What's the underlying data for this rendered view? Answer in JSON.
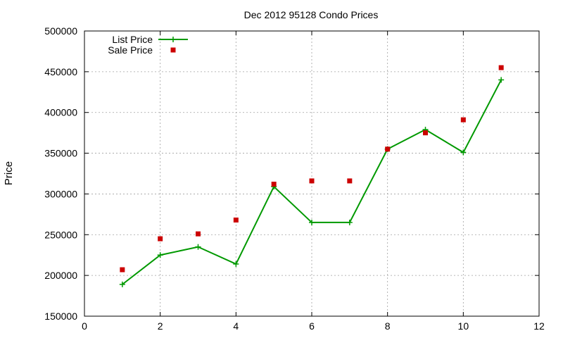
{
  "chart_data": {
    "type": "line",
    "title": "Dec 2012 95128 Condo Prices",
    "xlabel": "",
    "ylabel": "Price",
    "xlim": [
      0,
      12
    ],
    "ylim": [
      150000,
      500000
    ],
    "xticks": [
      0,
      2,
      4,
      6,
      8,
      10,
      12
    ],
    "yticks": [
      150000,
      200000,
      250000,
      300000,
      350000,
      400000,
      450000,
      500000
    ],
    "grid": true,
    "legend_position": "top-left",
    "series": [
      {
        "name": "List Price",
        "style": "line-with-plus-markers",
        "color": "#009900",
        "x": [
          1,
          2,
          3,
          4,
          5,
          6,
          7,
          8,
          9,
          10,
          11
        ],
        "values": [
          189000,
          225000,
          235000,
          214000,
          309000,
          265000,
          265000,
          355000,
          379000,
          351000,
          440000
        ]
      },
      {
        "name": "Sale Price",
        "style": "square-markers",
        "color": "#cc0000",
        "x": [
          1,
          2,
          3,
          4,
          5,
          6,
          7,
          8,
          9,
          10,
          11
        ],
        "values": [
          207000,
          245000,
          251000,
          268000,
          312000,
          316000,
          316000,
          355000,
          375000,
          391000,
          455000
        ]
      }
    ]
  }
}
